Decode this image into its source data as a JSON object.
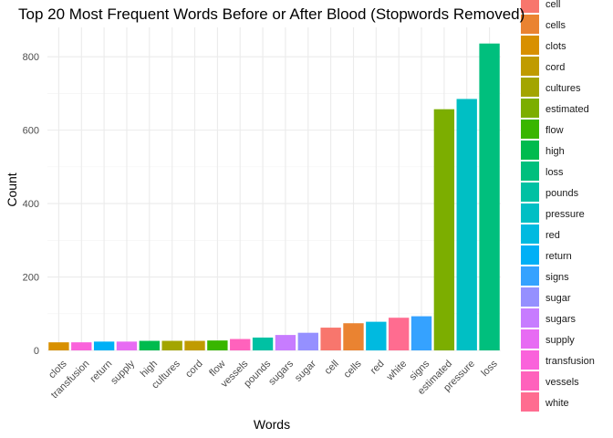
{
  "chart_data": {
    "type": "bar",
    "title": "Top 20 Most Frequent Words Before or After Blood (Stopwords Removed)",
    "xlabel": "Words",
    "ylabel": "Count",
    "ylim": [
      0,
      880
    ],
    "y_ticks": [
      0,
      200,
      400,
      600,
      800
    ],
    "grid": true,
    "legend_position": "right",
    "categories": [
      "clots",
      "transfusion",
      "return",
      "supply",
      "high",
      "cultures",
      "cord",
      "flow",
      "vessels",
      "pounds",
      "sugars",
      "sugar",
      "cell",
      "cells",
      "red",
      "white",
      "signs",
      "estimated",
      "pressure",
      "loss"
    ],
    "values": [
      22,
      22,
      24,
      24,
      26,
      26,
      26,
      27,
      31,
      35,
      42,
      48,
      62,
      74,
      78,
      89,
      93,
      657,
      685,
      836
    ],
    "legend": [
      "cell",
      "cells",
      "clots",
      "cord",
      "cultures",
      "estimated",
      "flow",
      "high",
      "loss",
      "pounds",
      "pressure",
      "red",
      "return",
      "signs",
      "sugar",
      "sugars",
      "supply",
      "transfusion",
      "vessels",
      "white"
    ],
    "colors": {
      "cell": "#F8766D",
      "cells": "#EA8331",
      "clots": "#D89000",
      "cord": "#C09B00",
      "cultures": "#A3A500",
      "estimated": "#7CAE00",
      "flow": "#39B600",
      "high": "#00BB4E",
      "loss": "#00BF7D",
      "pounds": "#00C1A3",
      "pressure": "#00BFC4",
      "red": "#00BAE0",
      "return": "#00B0F6",
      "signs": "#35A2FF",
      "sugar": "#9590FF",
      "sugars": "#C77CFF",
      "supply": "#E76BF3",
      "transfusion": "#FA62DB",
      "vessels": "#FF62BC",
      "white": "#FF6C90"
    }
  }
}
